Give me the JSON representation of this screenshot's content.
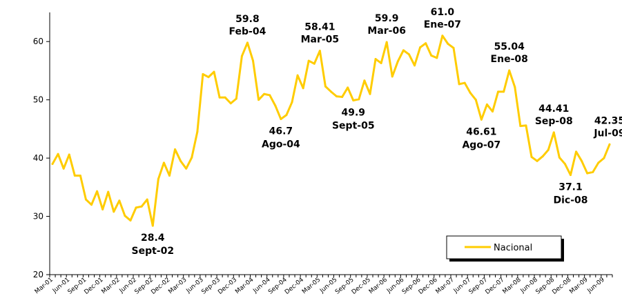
{
  "chart_data": {
    "type": "line",
    "title": "",
    "xlabel": "",
    "ylabel": "",
    "ylim": [
      20,
      65
    ],
    "yticks": [
      20,
      30,
      40,
      50,
      60
    ],
    "grid": false,
    "legend_position": "bottom-right",
    "colors": {
      "series": "#FFCC00",
      "axis": "#000000"
    },
    "x": [
      "Mar-01",
      "Apr-01",
      "May-01",
      "Jun-01",
      "Jul-01",
      "Aug-01",
      "Sep-01",
      "Oct-01",
      "Nov-01",
      "Dec-01",
      "Jan-02",
      "Feb-02",
      "Mar-02",
      "Apr-02",
      "May-02",
      "Jun-02",
      "Jul-02",
      "Aug-02",
      "Sep-02",
      "Oct-02",
      "Nov-02",
      "Dec-02",
      "Jan-03",
      "Feb-03",
      "Mar-03",
      "Apr-03",
      "May-03",
      "Jun-03",
      "Jul-03",
      "Aug-03",
      "Sep-03",
      "Oct-03",
      "Nov-03",
      "Dec-03",
      "Jan-04",
      "Feb-04",
      "Mar-04",
      "Apr-04",
      "May-04",
      "Jun-04",
      "Jul-04",
      "Aug-04",
      "Sep-04",
      "Oct-04",
      "Nov-04",
      "Dec-04",
      "Jan-05",
      "Feb-05",
      "Mar-05",
      "Apr-05",
      "May-05",
      "Jun-05",
      "Jul-05",
      "Aug-05",
      "Sep-05",
      "Oct-05",
      "Nov-05",
      "Dec-05",
      "Jan-06",
      "Feb-06",
      "Mar-06",
      "Apr-06",
      "May-06",
      "Jun-06",
      "Jul-06",
      "Aug-06",
      "Sep-06",
      "Oct-06",
      "Nov-06",
      "Dec-06",
      "Jan-07",
      "Feb-07",
      "Mar-07",
      "Apr-07",
      "May-07",
      "Jun-07",
      "Jul-07",
      "Aug-07",
      "Sep-07",
      "Oct-07",
      "Nov-07",
      "Dec-07",
      "Jan-08",
      "Feb-08",
      "Mar-08",
      "Apr-08",
      "May-08",
      "Jun-08",
      "Jul-08",
      "Aug-08",
      "Sep-08",
      "Oct-08",
      "Nov-08",
      "Dec-08",
      "Jan-09",
      "Feb-09",
      "Mar-09",
      "Apr-09",
      "May-09",
      "Jun-09",
      "Jul-09"
    ],
    "x_tick_labels": [
      "Mar-01",
      "Jun-01",
      "Sep-01",
      "Dec-01",
      "Mar-02",
      "Jun-02",
      "Sep-02",
      "Dec-02",
      "Mar-03",
      "Jun-03",
      "Sep-03",
      "Dec-03",
      "Mar-04",
      "Jun-04",
      "Sep-04",
      "Dec-04",
      "Mar-05",
      "Jun-05",
      "Sep-05",
      "Dec-05",
      "Mar-06",
      "Jun-06",
      "Sep-06",
      "Dec-06",
      "Mar-07",
      "Jun-07",
      "Sep-07",
      "Dec-07",
      "Mar-08",
      "Jun-08",
      "Sep-08",
      "Dec-08",
      "Mar-09",
      "Jun-09"
    ],
    "series": [
      {
        "name": "Nacional",
        "values": [
          39.0,
          40.7,
          38.2,
          40.6,
          37.0,
          37.0,
          32.9,
          32.0,
          34.3,
          31.2,
          34.2,
          30.8,
          32.7,
          30.1,
          29.3,
          31.5,
          31.7,
          32.9,
          28.4,
          36.4,
          39.2,
          37.0,
          41.5,
          39.5,
          38.2,
          40.1,
          44.5,
          54.4,
          53.9,
          54.8,
          50.4,
          50.4,
          49.4,
          50.2,
          57.5,
          59.8,
          56.7,
          50.0,
          51.0,
          50.8,
          49.0,
          46.7,
          47.4,
          49.6,
          54.2,
          52.0,
          56.7,
          56.2,
          58.41,
          52.3,
          51.4,
          50.6,
          50.5,
          52.1,
          49.9,
          50.1,
          53.3,
          51.0,
          57.0,
          56.3,
          59.9,
          54.0,
          56.6,
          58.5,
          57.8,
          55.9,
          59.0,
          59.7,
          57.6,
          57.2,
          61.0,
          59.6,
          58.9,
          52.7,
          52.9,
          51.2,
          50.0,
          46.61,
          49.2,
          48.0,
          51.4,
          51.4,
          55.04,
          52.2,
          45.5,
          45.6,
          40.2,
          39.5,
          40.3,
          41.4,
          44.41,
          40.1,
          39.0,
          37.1,
          41.1,
          39.5,
          37.4,
          37.6,
          39.2,
          40.0,
          42.35
        ]
      }
    ],
    "annotations": [
      {
        "x": "Sep-02",
        "value": 28.4,
        "line1": "28.4",
        "line2": "Sept-02",
        "pos": "below"
      },
      {
        "x": "Feb-04",
        "value": 59.8,
        "line1": "59.8",
        "line2": "Feb-04",
        "pos": "above"
      },
      {
        "x": "Aug-04",
        "value": 46.7,
        "line1": "46.7",
        "line2": "Ago-04",
        "pos": "below"
      },
      {
        "x": "Mar-05",
        "value": 58.41,
        "line1": "58.41",
        "line2": "Mar-05",
        "pos": "above"
      },
      {
        "x": "Sep-05",
        "value": 49.9,
        "line1": "49.9",
        "line2": "Sept-05",
        "pos": "below"
      },
      {
        "x": "Mar-06",
        "value": 59.9,
        "line1": "59.9",
        "line2": "Mar-06",
        "pos": "above"
      },
      {
        "x": "Jan-07",
        "value": 61.0,
        "line1": "61.0",
        "line2": "Ene-07",
        "pos": "above"
      },
      {
        "x": "Aug-07",
        "value": 46.61,
        "line1": "46.61",
        "line2": "Ago-07",
        "pos": "below"
      },
      {
        "x": "Jan-08",
        "value": 55.04,
        "line1": "55.04",
        "line2": "Ene-08",
        "pos": "above"
      },
      {
        "x": "Sep-08",
        "value": 44.41,
        "line1": "44.41",
        "line2": "Sep-08",
        "pos": "above"
      },
      {
        "x": "Dec-08",
        "value": 37.1,
        "line1": "37.1",
        "line2": "Dic-08",
        "pos": "below"
      },
      {
        "x": "Jul-09",
        "value": 42.35,
        "line1": "42.35",
        "line2": "Jul-09",
        "pos": "above"
      }
    ]
  }
}
